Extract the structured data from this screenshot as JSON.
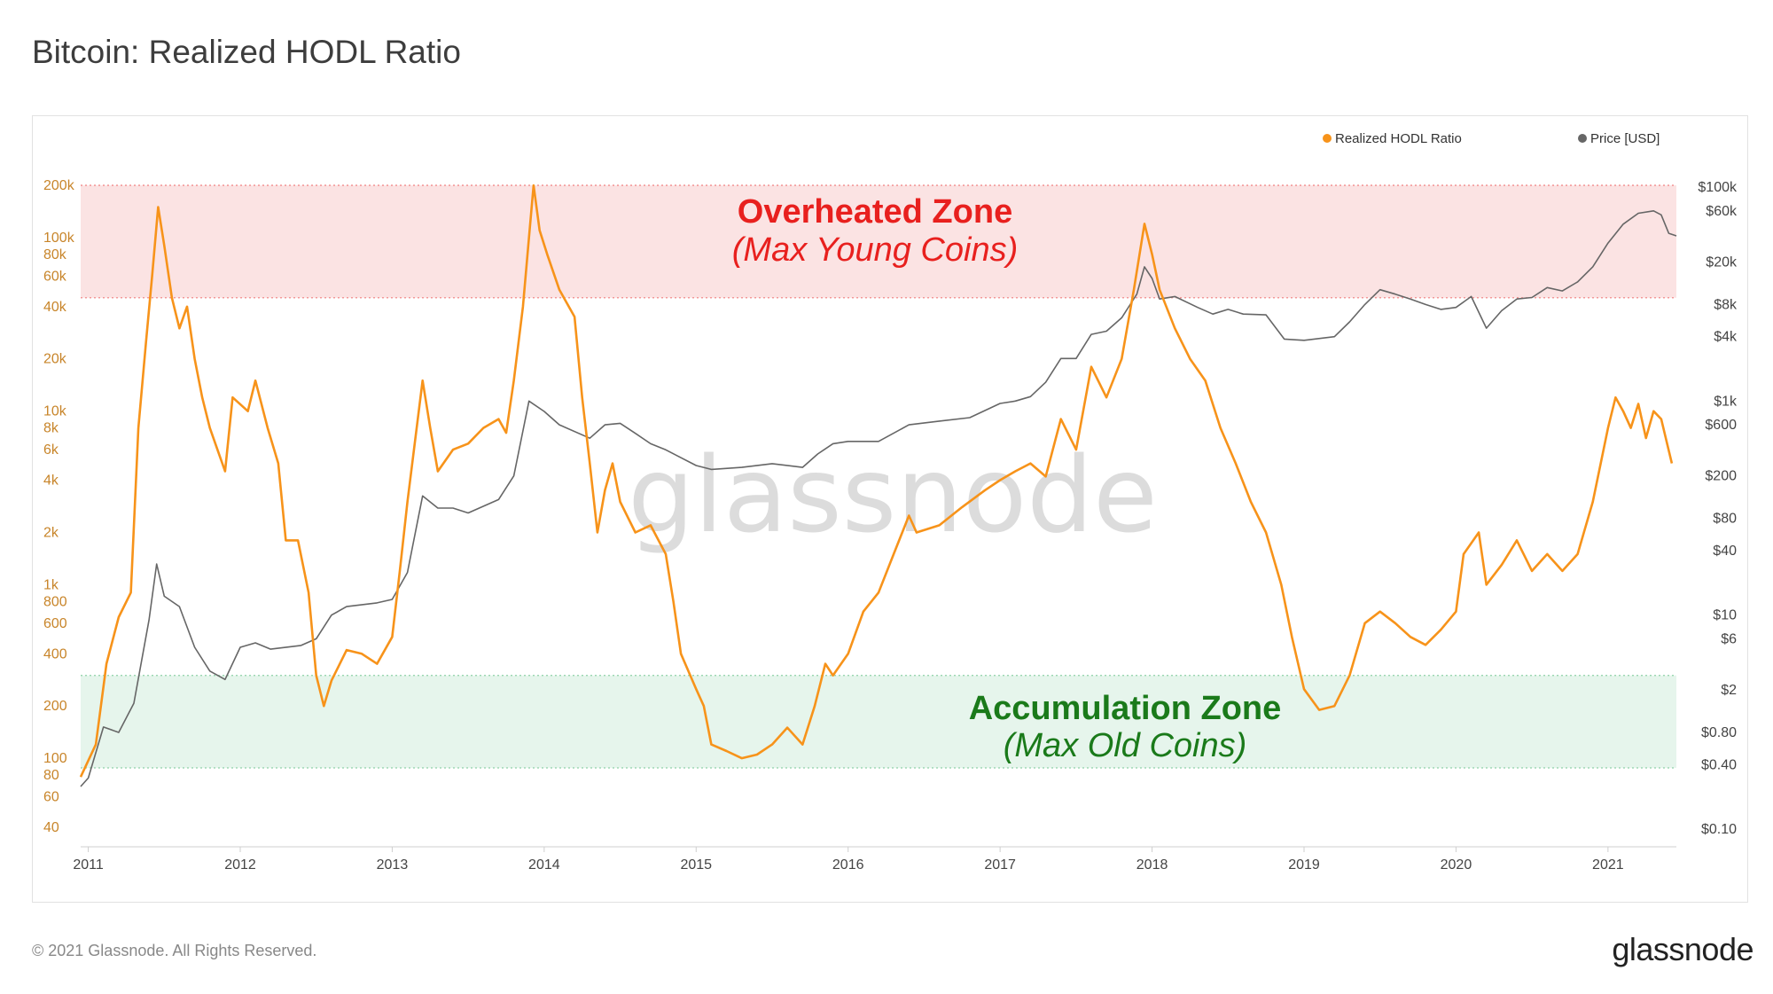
{
  "page": {
    "title": "Bitcoin: Realized HODL Ratio",
    "copyright": "© 2021 Glassnode. All Rights Reserved.",
    "brand": "glassnode",
    "watermark": "glassnode"
  },
  "chart_data": {
    "type": "line",
    "title": "Bitcoin: Realized HODL Ratio",
    "legend": {
      "position": "top-right",
      "items": [
        {
          "name": "Realized HODL Ratio",
          "color": "#f7931a"
        },
        {
          "name": "Price [USD]",
          "color": "#666666"
        }
      ]
    },
    "x_axis": {
      "type": "time",
      "range": [
        2010.95,
        2021.45
      ],
      "tick_values": [
        2011,
        2012,
        2013,
        2014,
        2015,
        2016,
        2017,
        2018,
        2019,
        2020,
        2021
      ],
      "tick_labels": [
        "2011",
        "2012",
        "2013",
        "2014",
        "2015",
        "2016",
        "2017",
        "2018",
        "2019",
        "2020",
        "2021"
      ]
    },
    "y_left": {
      "scale": "log",
      "range": [
        40,
        200000
      ],
      "tick_values": [
        40,
        60,
        80,
        100,
        200,
        400,
        600,
        800,
        1000,
        2000,
        4000,
        6000,
        8000,
        10000,
        20000,
        40000,
        60000,
        80000,
        100000,
        200000
      ],
      "tick_labels": [
        "40",
        "60",
        "80",
        "100",
        "200",
        "400",
        "600",
        "800",
        "1k",
        "2k",
        "4k",
        "6k",
        "8k",
        "10k",
        "20k",
        "40k",
        "60k",
        "80k",
        "100k",
        "200k"
      ]
    },
    "y_right": {
      "scale": "log",
      "range": [
        0.1,
        100000
      ],
      "tick_values": [
        0.1,
        0.4,
        0.8,
        2,
        6,
        10,
        40,
        80,
        200,
        600,
        1000,
        4000,
        8000,
        20000,
        60000,
        100000
      ],
      "tick_labels": [
        "$0.10",
        "$0.40",
        "$0.80",
        "$2",
        "$6",
        "$10",
        "$40",
        "$80",
        "$200",
        "$600",
        "$1k",
        "$4k",
        "$8k",
        "$20k",
        "$60k",
        "$100k"
      ]
    },
    "zones": [
      {
        "name": "Overheated Zone",
        "subtitle": "(Max Young Coins)",
        "range": [
          45000,
          200000
        ],
        "fill": "#fbe3e3",
        "line": "#f08080",
        "text_color": "#e8201e"
      },
      {
        "name": "Accumulation Zone",
        "subtitle": "(Max Old Coins)",
        "range": [
          88,
          300
        ],
        "fill": "#e6f5ec",
        "line": "#8fd1a8",
        "text_color": "#1a7a1a"
      }
    ],
    "series": [
      {
        "name": "Realized HODL Ratio",
        "axis": "left",
        "color": "#f7931a",
        "points": [
          [
            2010.95,
            78
          ],
          [
            2011.05,
            120
          ],
          [
            2011.12,
            350
          ],
          [
            2011.2,
            650
          ],
          [
            2011.28,
            900
          ],
          [
            2011.33,
            8000
          ],
          [
            2011.38,
            25000
          ],
          [
            2011.42,
            60000
          ],
          [
            2011.46,
            150000
          ],
          [
            2011.5,
            90000
          ],
          [
            2011.55,
            45000
          ],
          [
            2011.6,
            30000
          ],
          [
            2011.65,
            40000
          ],
          [
            2011.7,
            20000
          ],
          [
            2011.75,
            12000
          ],
          [
            2011.8,
            8000
          ],
          [
            2011.85,
            6000
          ],
          [
            2011.9,
            4500
          ],
          [
            2011.95,
            12000
          ],
          [
            2012.05,
            10000
          ],
          [
            2012.1,
            15000
          ],
          [
            2012.18,
            8000
          ],
          [
            2012.25,
            5000
          ],
          [
            2012.3,
            1800
          ],
          [
            2012.38,
            1800
          ],
          [
            2012.45,
            900
          ],
          [
            2012.5,
            300
          ],
          [
            2012.55,
            200
          ],
          [
            2012.6,
            280
          ],
          [
            2012.7,
            420
          ],
          [
            2012.8,
            400
          ],
          [
            2012.9,
            350
          ],
          [
            2013.0,
            500
          ],
          [
            2013.05,
            1200
          ],
          [
            2013.1,
            3000
          ],
          [
            2013.2,
            15000
          ],
          [
            2013.25,
            8000
          ],
          [
            2013.3,
            4500
          ],
          [
            2013.4,
            6000
          ],
          [
            2013.5,
            6500
          ],
          [
            2013.6,
            8000
          ],
          [
            2013.7,
            9000
          ],
          [
            2013.75,
            7500
          ],
          [
            2013.8,
            15000
          ],
          [
            2013.86,
            40000
          ],
          [
            2013.9,
            100000
          ],
          [
            2013.93,
            200000
          ],
          [
            2013.97,
            110000
          ],
          [
            2014.02,
            80000
          ],
          [
            2014.1,
            50000
          ],
          [
            2014.2,
            35000
          ],
          [
            2014.25,
            12000
          ],
          [
            2014.3,
            5000
          ],
          [
            2014.35,
            2000
          ],
          [
            2014.4,
            3500
          ],
          [
            2014.45,
            5000
          ],
          [
            2014.5,
            3000
          ],
          [
            2014.6,
            2000
          ],
          [
            2014.7,
            2200
          ],
          [
            2014.8,
            1500
          ],
          [
            2014.85,
            800
          ],
          [
            2014.9,
            400
          ],
          [
            2015.0,
            250
          ],
          [
            2015.05,
            200
          ],
          [
            2015.1,
            120
          ],
          [
            2015.2,
            110
          ],
          [
            2015.3,
            100
          ],
          [
            2015.4,
            105
          ],
          [
            2015.5,
            120
          ],
          [
            2015.6,
            150
          ],
          [
            2015.7,
            120
          ],
          [
            2015.78,
            200
          ],
          [
            2015.85,
            350
          ],
          [
            2015.9,
            300
          ],
          [
            2016.0,
            400
          ],
          [
            2016.1,
            700
          ],
          [
            2016.2,
            900
          ],
          [
            2016.3,
            1500
          ],
          [
            2016.4,
            2500
          ],
          [
            2016.45,
            2000
          ],
          [
            2016.6,
            2200
          ],
          [
            2016.75,
            2800
          ],
          [
            2016.9,
            3500
          ],
          [
            2017.0,
            4000
          ],
          [
            2017.1,
            4500
          ],
          [
            2017.2,
            5000
          ],
          [
            2017.3,
            4200
          ],
          [
            2017.4,
            9000
          ],
          [
            2017.5,
            6000
          ],
          [
            2017.6,
            18000
          ],
          [
            2017.7,
            12000
          ],
          [
            2017.8,
            20000
          ],
          [
            2017.88,
            50000
          ],
          [
            2017.95,
            120000
          ],
          [
            2018.0,
            80000
          ],
          [
            2018.05,
            50000
          ],
          [
            2018.15,
            30000
          ],
          [
            2018.25,
            20000
          ],
          [
            2018.35,
            15000
          ],
          [
            2018.45,
            8000
          ],
          [
            2018.55,
            5000
          ],
          [
            2018.65,
            3000
          ],
          [
            2018.75,
            2000
          ],
          [
            2018.85,
            1000
          ],
          [
            2018.92,
            500
          ],
          [
            2019.0,
            250
          ],
          [
            2019.1,
            190
          ],
          [
            2019.2,
            200
          ],
          [
            2019.3,
            300
          ],
          [
            2019.4,
            600
          ],
          [
            2019.5,
            700
          ],
          [
            2019.6,
            600
          ],
          [
            2019.7,
            500
          ],
          [
            2019.8,
            450
          ],
          [
            2019.9,
            550
          ],
          [
            2020.0,
            700
          ],
          [
            2020.05,
            1500
          ],
          [
            2020.15,
            2000
          ],
          [
            2020.2,
            1000
          ],
          [
            2020.3,
            1300
          ],
          [
            2020.4,
            1800
          ],
          [
            2020.5,
            1200
          ],
          [
            2020.6,
            1500
          ],
          [
            2020.7,
            1200
          ],
          [
            2020.8,
            1500
          ],
          [
            2020.9,
            3000
          ],
          [
            2021.0,
            8000
          ],
          [
            2021.05,
            12000
          ],
          [
            2021.1,
            10000
          ],
          [
            2021.15,
            8000
          ],
          [
            2021.2,
            11000
          ],
          [
            2021.25,
            7000
          ],
          [
            2021.3,
            10000
          ],
          [
            2021.35,
            9000
          ],
          [
            2021.42,
            5000
          ]
        ]
      },
      {
        "name": "Price [USD]",
        "axis": "right",
        "color": "#666666",
        "points": [
          [
            2010.95,
            0.25
          ],
          [
            2011.0,
            0.3
          ],
          [
            2011.1,
            0.9
          ],
          [
            2011.2,
            0.8
          ],
          [
            2011.3,
            1.5
          ],
          [
            2011.4,
            9
          ],
          [
            2011.45,
            30
          ],
          [
            2011.5,
            15
          ],
          [
            2011.6,
            12
          ],
          [
            2011.7,
            5
          ],
          [
            2011.8,
            3
          ],
          [
            2011.9,
            2.5
          ],
          [
            2012.0,
            5
          ],
          [
            2012.1,
            5.5
          ],
          [
            2012.2,
            4.8
          ],
          [
            2012.4,
            5.2
          ],
          [
            2012.5,
            6
          ],
          [
            2012.6,
            10
          ],
          [
            2012.7,
            12
          ],
          [
            2012.9,
            13
          ],
          [
            2013.0,
            14
          ],
          [
            2013.1,
            25
          ],
          [
            2013.2,
            130
          ],
          [
            2013.3,
            100
          ],
          [
            2013.4,
            100
          ],
          [
            2013.5,
            90
          ],
          [
            2013.7,
            120
          ],
          [
            2013.8,
            200
          ],
          [
            2013.9,
            1000
          ],
          [
            2014.0,
            800
          ],
          [
            2014.1,
            600
          ],
          [
            2014.3,
            450
          ],
          [
            2014.4,
            600
          ],
          [
            2014.5,
            620
          ],
          [
            2014.6,
            500
          ],
          [
            2014.7,
            400
          ],
          [
            2014.8,
            350
          ],
          [
            2015.0,
            250
          ],
          [
            2015.1,
            230
          ],
          [
            2015.3,
            240
          ],
          [
            2015.5,
            260
          ],
          [
            2015.7,
            240
          ],
          [
            2015.8,
            320
          ],
          [
            2015.9,
            400
          ],
          [
            2016.0,
            420
          ],
          [
            2016.2,
            420
          ],
          [
            2016.4,
            600
          ],
          [
            2016.6,
            650
          ],
          [
            2016.8,
            700
          ],
          [
            2017.0,
            950
          ],
          [
            2017.1,
            1000
          ],
          [
            2017.2,
            1100
          ],
          [
            2017.3,
            1500
          ],
          [
            2017.4,
            2500
          ],
          [
            2017.5,
            2500
          ],
          [
            2017.6,
            4200
          ],
          [
            2017.7,
            4500
          ],
          [
            2017.8,
            6000
          ],
          [
            2017.9,
            10000
          ],
          [
            2017.95,
            18000
          ],
          [
            2018.0,
            14000
          ],
          [
            2018.05,
            9000
          ],
          [
            2018.15,
            9500
          ],
          [
            2018.3,
            7500
          ],
          [
            2018.4,
            6500
          ],
          [
            2018.5,
            7200
          ],
          [
            2018.6,
            6500
          ],
          [
            2018.75,
            6400
          ],
          [
            2018.87,
            3800
          ],
          [
            2019.0,
            3700
          ],
          [
            2019.2,
            4000
          ],
          [
            2019.3,
            5500
          ],
          [
            2019.4,
            8000
          ],
          [
            2019.5,
            11000
          ],
          [
            2019.6,
            10000
          ],
          [
            2019.7,
            9000
          ],
          [
            2019.8,
            8000
          ],
          [
            2019.9,
            7200
          ],
          [
            2020.0,
            7500
          ],
          [
            2020.1,
            9500
          ],
          [
            2020.2,
            4800
          ],
          [
            2020.3,
            7000
          ],
          [
            2020.4,
            9000
          ],
          [
            2020.5,
            9300
          ],
          [
            2020.6,
            11500
          ],
          [
            2020.7,
            10700
          ],
          [
            2020.8,
            13000
          ],
          [
            2020.9,
            18000
          ],
          [
            2021.0,
            30000
          ],
          [
            2021.1,
            45000
          ],
          [
            2021.2,
            57000
          ],
          [
            2021.3,
            60000
          ],
          [
            2021.35,
            55000
          ],
          [
            2021.4,
            37000
          ],
          [
            2021.45,
            35000
          ]
        ]
      }
    ]
  }
}
